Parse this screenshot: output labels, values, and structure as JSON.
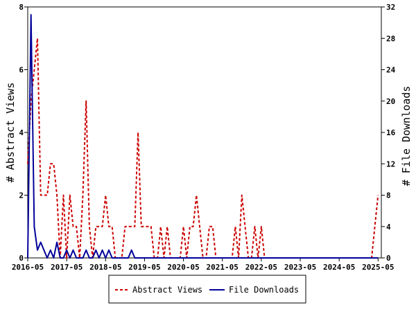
{
  "chart_data": {
    "type": "line",
    "ylabel_left": "# Abstract Views",
    "ylabel_right": "# File Downloads",
    "x_ticks": [
      "2016-05",
      "2017-05",
      "2018-05",
      "2019-05",
      "2020-05",
      "2021-05",
      "2022-05",
      "2023-05",
      "2024-05",
      "2025-05"
    ],
    "x_start": "2016-05",
    "x_end": "2025-06",
    "y_left_range": [
      0,
      8
    ],
    "y_left_ticks": [
      "0",
      "2",
      "4",
      "6",
      "8"
    ],
    "y_right_range": [
      0,
      32
    ],
    "y_right_ticks": [
      "0",
      "4",
      "8",
      "12",
      "16",
      "20",
      "24",
      "28",
      "32"
    ],
    "legend_position": "bottom",
    "grid": false,
    "series": [
      {
        "name": "Abstract Views",
        "axis": "left",
        "color": "#cc0000",
        "style": "dashed",
        "points": [
          [
            "2016-05",
            3
          ],
          [
            "2016-06",
            5
          ],
          [
            "2016-07",
            6
          ],
          [
            "2016-08",
            7
          ],
          [
            "2016-09",
            2
          ],
          [
            "2016-10",
            2
          ],
          [
            "2016-11",
            2
          ],
          [
            "2016-12",
            3
          ],
          [
            "2017-01",
            3
          ],
          [
            "2017-02",
            2
          ],
          [
            "2017-03",
            0
          ],
          [
            "2017-04",
            2
          ],
          [
            "2017-05",
            0
          ],
          [
            "2017-06",
            2
          ],
          [
            "2017-07",
            1
          ],
          [
            "2017-08",
            1
          ],
          [
            "2017-09",
            0
          ],
          [
            "2017-10",
            2
          ],
          [
            "2017-11",
            5
          ],
          [
            "2017-12",
            1
          ],
          [
            "2018-01",
            0
          ],
          [
            "2018-02",
            1
          ],
          [
            "2018-03",
            1
          ],
          [
            "2018-04",
            1
          ],
          [
            "2018-05",
            2
          ],
          [
            "2018-06",
            1
          ],
          [
            "2018-07",
            1
          ],
          [
            "2018-08",
            0
          ],
          [
            "2018-09",
            0
          ],
          [
            "2018-10",
            0
          ],
          [
            "2018-11",
            1
          ],
          [
            "2018-12",
            1
          ],
          [
            "2019-01",
            1
          ],
          [
            "2019-02",
            1
          ],
          [
            "2019-03",
            4
          ],
          [
            "2019-04",
            1
          ],
          [
            "2019-05",
            1
          ],
          [
            "2019-06",
            1
          ],
          [
            "2019-07",
            1
          ],
          [
            "2019-08",
            0
          ],
          [
            "2019-09",
            0
          ],
          [
            "2019-10",
            1
          ],
          [
            "2019-11",
            0
          ],
          [
            "2019-12",
            1
          ],
          [
            "2020-01",
            0
          ],
          [
            "2020-02",
            0
          ],
          [
            "2020-03",
            0
          ],
          [
            "2020-04",
            0
          ],
          [
            "2020-05",
            1
          ],
          [
            "2020-06",
            0
          ],
          [
            "2020-07",
            1
          ],
          [
            "2020-08",
            1
          ],
          [
            "2020-09",
            2
          ],
          [
            "2020-10",
            1
          ],
          [
            "2020-11",
            0
          ],
          [
            "2020-12",
            0
          ],
          [
            "2021-01",
            1
          ],
          [
            "2021-02",
            1
          ],
          [
            "2021-03",
            0
          ],
          [
            "2021-04",
            0
          ],
          [
            "2021-05",
            0
          ],
          [
            "2021-06",
            0
          ],
          [
            "2021-07",
            0
          ],
          [
            "2021-08",
            0
          ],
          [
            "2021-09",
            1
          ],
          [
            "2021-10",
            0
          ],
          [
            "2021-11",
            2
          ],
          [
            "2021-12",
            1
          ],
          [
            "2022-01",
            0
          ],
          [
            "2022-02",
            0
          ],
          [
            "2022-03",
            1
          ],
          [
            "2022-04",
            0
          ],
          [
            "2022-05",
            1
          ],
          [
            "2022-06",
            0
          ],
          [
            "2022-07",
            0
          ],
          [
            "2025-03",
            0
          ],
          [
            "2025-04",
            1
          ],
          [
            "2025-05",
            2
          ]
        ]
      },
      {
        "name": "File Downloads",
        "axis": "right",
        "color": "#000099",
        "style": "solid",
        "points": [
          [
            "2016-05",
            0
          ],
          [
            "2016-06",
            31
          ],
          [
            "2016-07",
            4
          ],
          [
            "2016-08",
            1
          ],
          [
            "2016-09",
            2
          ],
          [
            "2016-10",
            1
          ],
          [
            "2016-11",
            0
          ],
          [
            "2016-12",
            1
          ],
          [
            "2017-01",
            0
          ],
          [
            "2017-02",
            2
          ],
          [
            "2017-03",
            0
          ],
          [
            "2017-04",
            0
          ],
          [
            "2017-05",
            1
          ],
          [
            "2017-06",
            0
          ],
          [
            "2017-07",
            1
          ],
          [
            "2017-08",
            0
          ],
          [
            "2017-09",
            0
          ],
          [
            "2017-10",
            0
          ],
          [
            "2017-11",
            1
          ],
          [
            "2017-12",
            0
          ],
          [
            "2018-01",
            0
          ],
          [
            "2018-02",
            1
          ],
          [
            "2018-03",
            0
          ],
          [
            "2018-04",
            1
          ],
          [
            "2018-05",
            0
          ],
          [
            "2018-06",
            1
          ],
          [
            "2018-07",
            0
          ],
          [
            "2018-08",
            0
          ],
          [
            "2018-09",
            0
          ],
          [
            "2018-10",
            0
          ],
          [
            "2018-11",
            0
          ],
          [
            "2018-12",
            0
          ],
          [
            "2019-01",
            1
          ],
          [
            "2019-02",
            0
          ],
          [
            "2025-05",
            0
          ]
        ]
      }
    ]
  }
}
